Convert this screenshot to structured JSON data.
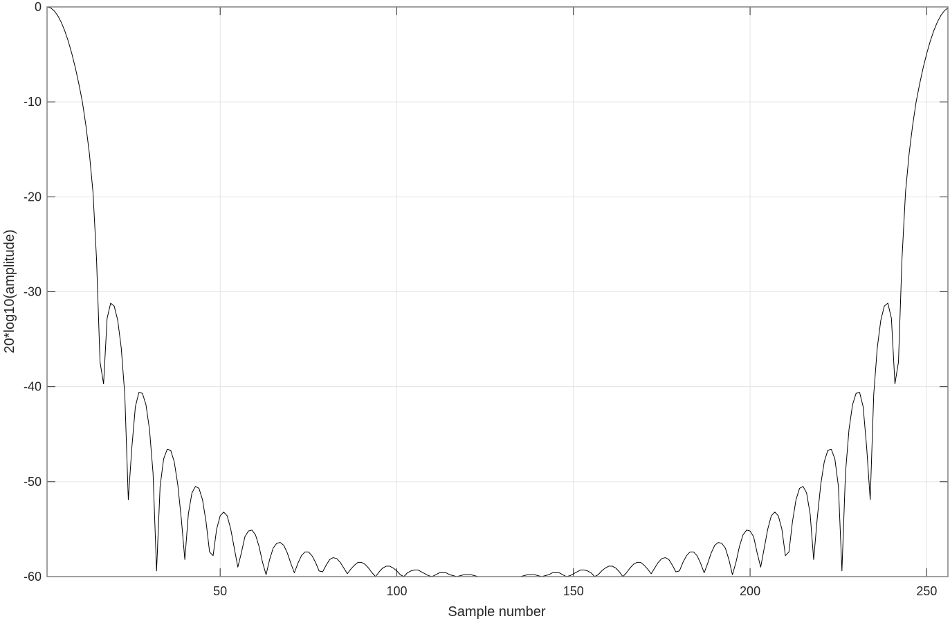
{
  "chart_data": {
    "type": "line",
    "title": "",
    "xlabel": "Sample number",
    "ylabel": "20*log10(amplitude)",
    "xlim": [
      1,
      256
    ],
    "ylim": [
      -60,
      0
    ],
    "grid": true,
    "xticks": [
      50,
      100,
      150,
      200,
      250
    ],
    "yticks": [
      0,
      -10,
      -20,
      -30,
      -40,
      -50,
      -60
    ],
    "xtick_labels": [
      "50",
      "100",
      "150",
      "200",
      "250"
    ],
    "ytick_labels": [
      "0",
      "-10",
      "-20",
      "-30",
      "-40",
      "-50",
      "-60"
    ],
    "line_color": "#000000",
    "grid_color": "#e3e3e3",
    "axis_color": "#808080",
    "series": [
      {
        "x_from": 1,
        "values": [
          0,
          -0.1,
          -0.4,
          -0.9,
          -1.6,
          -2.5,
          -3.6,
          -4.9,
          -6.4,
          -8.1,
          -10,
          -12.5,
          -15.5,
          -19.5,
          -26.5,
          -37.4,
          -39.7,
          -32.8,
          -31.2,
          -31.5,
          -33,
          -35.9,
          -40.8,
          -51.9,
          -46.4,
          -42.1,
          -40.6,
          -40.7,
          -41.9,
          -44.5,
          -49.1,
          -59.4,
          -50.5,
          -47.6,
          -46.6,
          -46.7,
          -47.9,
          -50.3,
          -53.9,
          -58.2,
          -53.4,
          -51.2,
          -50.5,
          -50.7,
          -51.9,
          -54.2,
          -57.4,
          -57.8,
          -55,
          -53.6,
          -53.2,
          -53.6,
          -55,
          -57,
          -59,
          -57.5,
          -55.8,
          -55.2,
          -55.1,
          -55.6,
          -56.8,
          -58.5,
          -59.8,
          -58.2,
          -57,
          -56.5,
          -56.4,
          -56.7,
          -57.5,
          -58.6,
          -59.6,
          -58.6,
          -57.8,
          -57.4,
          -57.4,
          -57.8,
          -58.5,
          -59.4,
          -59.5,
          -58.8,
          -58.2,
          -58,
          -58.1,
          -58.5,
          -59.1,
          -59.7,
          -59.2,
          -58.8,
          -58.5,
          -58.5,
          -58.7,
          -59.1,
          -59.6,
          -60,
          -59.5,
          -59.1,
          -58.9,
          -58.9,
          -59.1,
          -59.4,
          -59.8,
          -60,
          -59.6,
          -59.4,
          -59.3,
          -59.3,
          -59.5,
          -59.7,
          -59.9,
          -60,
          -59.8,
          -59.6,
          -59.6,
          -59.6,
          -59.8,
          -59.9,
          -60,
          -59.9,
          -59.8,
          -59.8,
          -59.8,
          -59.9,
          -60,
          -60,
          -60,
          -60,
          -60,
          -60,
          -60,
          -60,
          -60,
          -60,
          -60,
          -60,
          -60,
          -59.9,
          -59.8,
          -59.8,
          -59.8,
          -59.9,
          -60,
          -59.9,
          -59.8,
          -59.6,
          -59.6,
          -59.6,
          -59.8,
          -60,
          -59.9,
          -59.7,
          -59.5,
          -59.3,
          -59.3,
          -59.4,
          -59.6,
          -60,
          -59.8,
          -59.4,
          -59.1,
          -58.9,
          -58.9,
          -59.1,
          -59.5,
          -60,
          -59.6,
          -59.1,
          -58.7,
          -58.5,
          -58.5,
          -58.8,
          -59.2,
          -59.7,
          -59.1,
          -58.5,
          -58.1,
          -58,
          -58.2,
          -58.8,
          -59.5,
          -59.4,
          -58.5,
          -57.8,
          -57.4,
          -57.4,
          -57.8,
          -58.6,
          -59.6,
          -58.6,
          -57.5,
          -56.7,
          -56.4,
          -56.5,
          -57,
          -58.2,
          -59.8,
          -58.5,
          -56.8,
          -55.6,
          -55.1,
          -55.2,
          -55.8,
          -57.5,
          -59,
          -57,
          -55,
          -53.6,
          -53.2,
          -53.6,
          -55,
          -57.8,
          -57.4,
          -54.2,
          -51.9,
          -50.7,
          -50.5,
          -51.2,
          -53.4,
          -58.2,
          -53.9,
          -50.3,
          -47.9,
          -46.7,
          -46.6,
          -47.6,
          -50.5,
          -59.4,
          -49.1,
          -44.5,
          -41.9,
          -40.7,
          -40.6,
          -42.1,
          -46.4,
          -51.9,
          -40.8,
          -35.9,
          -33,
          -31.5,
          -31.2,
          -32.8,
          -39.7,
          -37.4,
          -26.5,
          -19.5,
          -15.5,
          -12.5,
          -10,
          -8.1,
          -6.4,
          -4.9,
          -3.6,
          -2.5,
          -1.6,
          -0.9,
          -0.4,
          -0.1
        ]
      }
    ]
  }
}
